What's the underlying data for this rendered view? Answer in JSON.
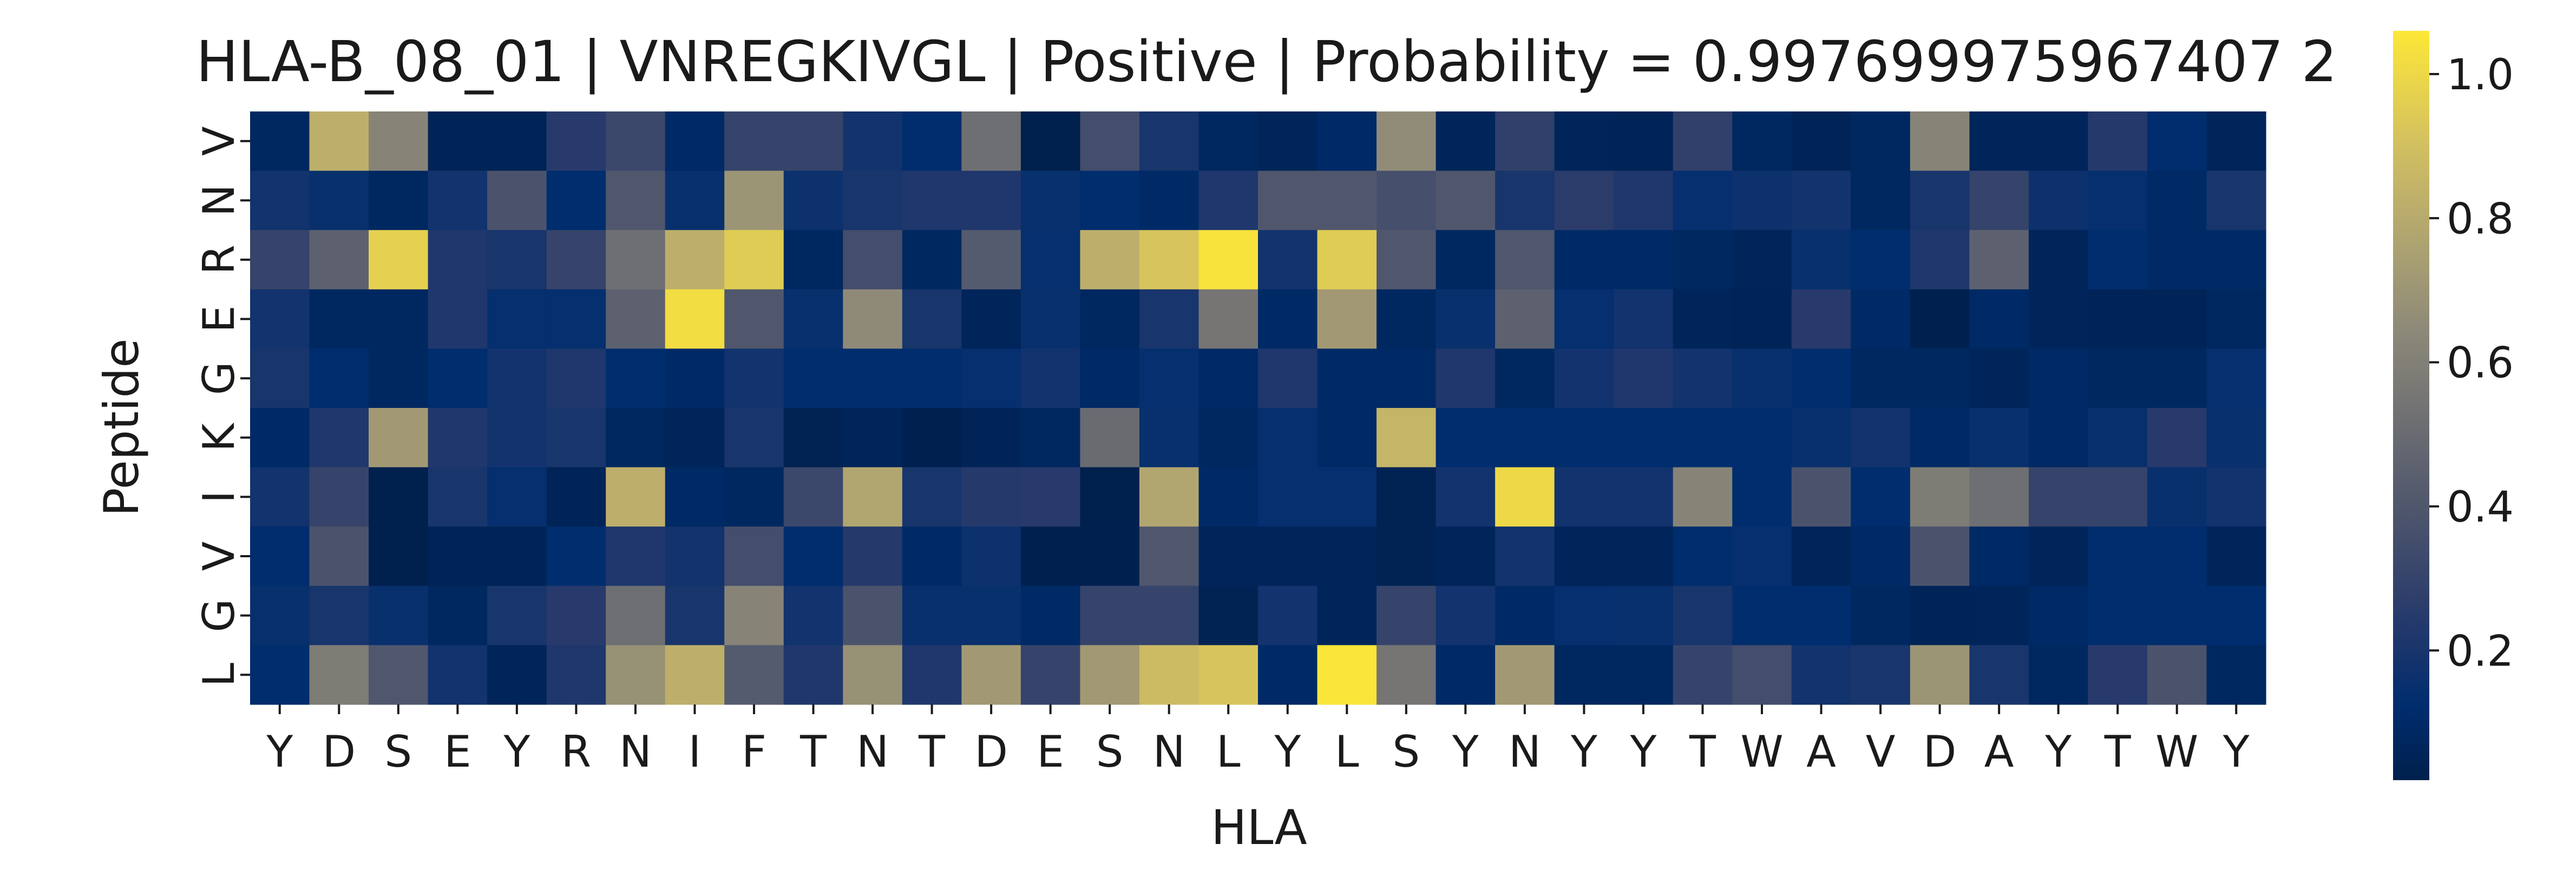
{
  "chart_data": {
    "type": "heatmap",
    "title": "HLA-B_08_01 | VNREGKIVGL | Positive | Probability = 0.997699975967407 2",
    "xlabel": "HLA",
    "ylabel": "Peptide",
    "x_categories": [
      "Y",
      "D",
      "S",
      "E",
      "Y",
      "R",
      "N",
      "I",
      "F",
      "T",
      "N",
      "T",
      "D",
      "E",
      "S",
      "N",
      "L",
      "Y",
      "L",
      "S",
      "Y",
      "N",
      "Y",
      "Y",
      "T",
      "W",
      "A",
      "V",
      "D",
      "A",
      "Y",
      "T",
      "W",
      "Y"
    ],
    "y_categories": [
      "V",
      "N",
      "R",
      "E",
      "G",
      "K",
      "I",
      "V",
      "G",
      "L"
    ],
    "colormap": "cividis",
    "colorbar_range": [
      0.02,
      1.06
    ],
    "colorbar_ticks": [
      "0.2",
      "0.4",
      "0.6",
      "0.8",
      "1.0"
    ],
    "values": [
      [
        0.08,
        0.82,
        0.62,
        0.05,
        0.05,
        0.25,
        0.32,
        0.1,
        0.3,
        0.3,
        0.18,
        0.12,
        0.52,
        0.02,
        0.35,
        0.2,
        0.08,
        0.06,
        0.1,
        0.66,
        0.06,
        0.28,
        0.06,
        0.05,
        0.28,
        0.08,
        0.05,
        0.08,
        0.62,
        0.06,
        0.06,
        0.24,
        0.12,
        0.06
      ],
      [
        0.18,
        0.15,
        0.08,
        0.18,
        0.38,
        0.12,
        0.4,
        0.15,
        0.7,
        0.16,
        0.2,
        0.22,
        0.22,
        0.15,
        0.12,
        0.1,
        0.22,
        0.4,
        0.4,
        0.36,
        0.4,
        0.2,
        0.26,
        0.22,
        0.14,
        0.16,
        0.18,
        0.08,
        0.2,
        0.3,
        0.16,
        0.14,
        0.1,
        0.2
      ],
      [
        0.3,
        0.45,
        0.97,
        0.22,
        0.2,
        0.3,
        0.52,
        0.82,
        0.95,
        0.08,
        0.35,
        0.08,
        0.42,
        0.14,
        0.82,
        0.92,
        1.04,
        0.18,
        0.95,
        0.4,
        0.08,
        0.4,
        0.1,
        0.1,
        0.08,
        0.06,
        0.15,
        0.12,
        0.22,
        0.45,
        0.06,
        0.12,
        0.1,
        0.1
      ],
      [
        0.18,
        0.08,
        0.08,
        0.22,
        0.14,
        0.14,
        0.45,
        1.02,
        0.4,
        0.15,
        0.65,
        0.2,
        0.06,
        0.15,
        0.08,
        0.2,
        0.55,
        0.1,
        0.72,
        0.08,
        0.15,
        0.45,
        0.14,
        0.18,
        0.06,
        0.05,
        0.25,
        0.1,
        0.03,
        0.1,
        0.06,
        0.05,
        0.05,
        0.08
      ],
      [
        0.2,
        0.12,
        0.08,
        0.12,
        0.18,
        0.22,
        0.12,
        0.1,
        0.18,
        0.12,
        0.12,
        0.12,
        0.14,
        0.18,
        0.1,
        0.14,
        0.1,
        0.22,
        0.1,
        0.1,
        0.22,
        0.08,
        0.18,
        0.22,
        0.18,
        0.15,
        0.12,
        0.08,
        0.08,
        0.06,
        0.1,
        0.08,
        0.08,
        0.14
      ],
      [
        0.1,
        0.22,
        0.72,
        0.22,
        0.18,
        0.2,
        0.08,
        0.06,
        0.2,
        0.04,
        0.06,
        0.03,
        0.05,
        0.08,
        0.5,
        0.15,
        0.08,
        0.14,
        0.1,
        0.85,
        0.12,
        0.12,
        0.12,
        0.12,
        0.12,
        0.12,
        0.15,
        0.18,
        0.1,
        0.15,
        0.1,
        0.15,
        0.25,
        0.15
      ],
      [
        0.18,
        0.3,
        0.02,
        0.2,
        0.14,
        0.05,
        0.82,
        0.1,
        0.08,
        0.32,
        0.78,
        0.2,
        0.24,
        0.25,
        0.02,
        0.78,
        0.1,
        0.14,
        0.14,
        0.04,
        0.18,
        1.0,
        0.18,
        0.18,
        0.62,
        0.12,
        0.38,
        0.12,
        0.58,
        0.52,
        0.3,
        0.3,
        0.15,
        0.18
      ],
      [
        0.12,
        0.38,
        0.02,
        0.05,
        0.05,
        0.12,
        0.22,
        0.18,
        0.35,
        0.12,
        0.24,
        0.1,
        0.16,
        0.03,
        0.03,
        0.4,
        0.06,
        0.06,
        0.06,
        0.04,
        0.06,
        0.18,
        0.06,
        0.06,
        0.12,
        0.14,
        0.06,
        0.1,
        0.38,
        0.1,
        0.06,
        0.12,
        0.12,
        0.06
      ],
      [
        0.15,
        0.2,
        0.15,
        0.08,
        0.2,
        0.25,
        0.52,
        0.2,
        0.62,
        0.18,
        0.38,
        0.15,
        0.15,
        0.1,
        0.3,
        0.3,
        0.04,
        0.18,
        0.06,
        0.3,
        0.18,
        0.1,
        0.14,
        0.15,
        0.2,
        0.12,
        0.12,
        0.08,
        0.05,
        0.06,
        0.1,
        0.12,
        0.12,
        0.12
      ],
      [
        0.12,
        0.58,
        0.4,
        0.18,
        0.06,
        0.22,
        0.68,
        0.82,
        0.42,
        0.22,
        0.68,
        0.22,
        0.72,
        0.3,
        0.72,
        0.88,
        0.92,
        0.1,
        1.05,
        0.55,
        0.1,
        0.72,
        0.08,
        0.08,
        0.3,
        0.35,
        0.18,
        0.2,
        0.7,
        0.2,
        0.08,
        0.25,
        0.38,
        0.08
      ]
    ]
  }
}
